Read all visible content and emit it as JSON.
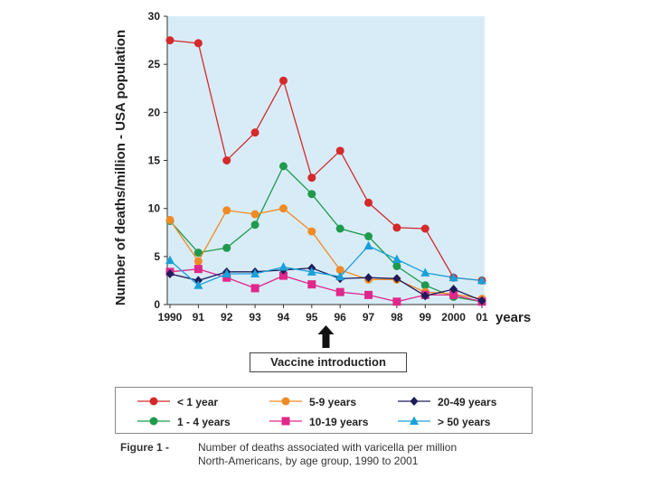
{
  "chart_data": {
    "type": "line",
    "title": "",
    "ylabel": "Number of deaths/million - USA population",
    "xlabel": "years",
    "ylim": [
      0,
      30
    ],
    "yticks": [
      0,
      5,
      10,
      15,
      20,
      25,
      30
    ],
    "categories": [
      "1990",
      "91",
      "92",
      "93",
      "94",
      "95",
      "96",
      "97",
      "98",
      "99",
      "2000",
      "01"
    ],
    "series": [
      {
        "name": "< 1 year",
        "color": "#d42a2a",
        "marker": "circle",
        "values": [
          27.5,
          27.2,
          15.0,
          17.9,
          23.3,
          13.2,
          16.0,
          10.6,
          8.0,
          7.9,
          2.8,
          2.5
        ]
      },
      {
        "name": "1 - 4 years",
        "color": "#1f9a4c",
        "marker": "circle",
        "values": [
          8.7,
          5.4,
          5.9,
          8.3,
          14.4,
          11.5,
          7.9,
          7.1,
          4.0,
          2.0,
          0.8,
          0.3
        ]
      },
      {
        "name": "5-9 years",
        "color": "#f08a24",
        "marker": "circle",
        "values": [
          8.8,
          4.5,
          9.8,
          9.4,
          10.0,
          7.6,
          3.6,
          2.6,
          2.6,
          1.3,
          1.1,
          0.6
        ]
      },
      {
        "name": "10-19 years",
        "color": "#e0288a",
        "marker": "square",
        "values": [
          3.4,
          3.7,
          2.8,
          1.7,
          3.0,
          2.1,
          1.3,
          1.0,
          0.3,
          1.0,
          1.0,
          0.3
        ]
      },
      {
        "name": "20-49 years",
        "color": "#1c1c5a",
        "marker": "diamond",
        "values": [
          3.2,
          2.5,
          3.4,
          3.4,
          3.6,
          3.8,
          2.7,
          2.8,
          2.7,
          0.9,
          1.6,
          0.4
        ]
      },
      {
        "name": "> 50 years",
        "color": "#1aa0d8",
        "marker": "triangle",
        "values": [
          4.6,
          2.0,
          3.2,
          3.2,
          3.9,
          3.4,
          2.9,
          6.1,
          4.7,
          3.3,
          2.8,
          2.5
        ]
      }
    ],
    "annotation": "Vaccine introduction",
    "annotation_at": "95",
    "background": "#d8ecf8"
  },
  "legend": {
    "items": [
      {
        "label": "< 1 year",
        "color": "#d42a2a",
        "marker": "circle"
      },
      {
        "label": "5-9 years",
        "color": "#f08a24",
        "marker": "circle"
      },
      {
        "label": "20-49 years",
        "color": "#1c1c5a",
        "marker": "diamond"
      },
      {
        "label": "1 - 4 years",
        "color": "#1f9a4c",
        "marker": "circle"
      },
      {
        "label": "10-19 years",
        "color": "#e0288a",
        "marker": "square"
      },
      {
        "label": "> 50 years",
        "color": "#1aa0d8",
        "marker": "triangle"
      }
    ]
  },
  "caption": {
    "lead": "Figure 1 -",
    "line1": "Number of deaths associated with varicella per million",
    "line2": "North-Americans, by age group, 1990 to 2001"
  }
}
